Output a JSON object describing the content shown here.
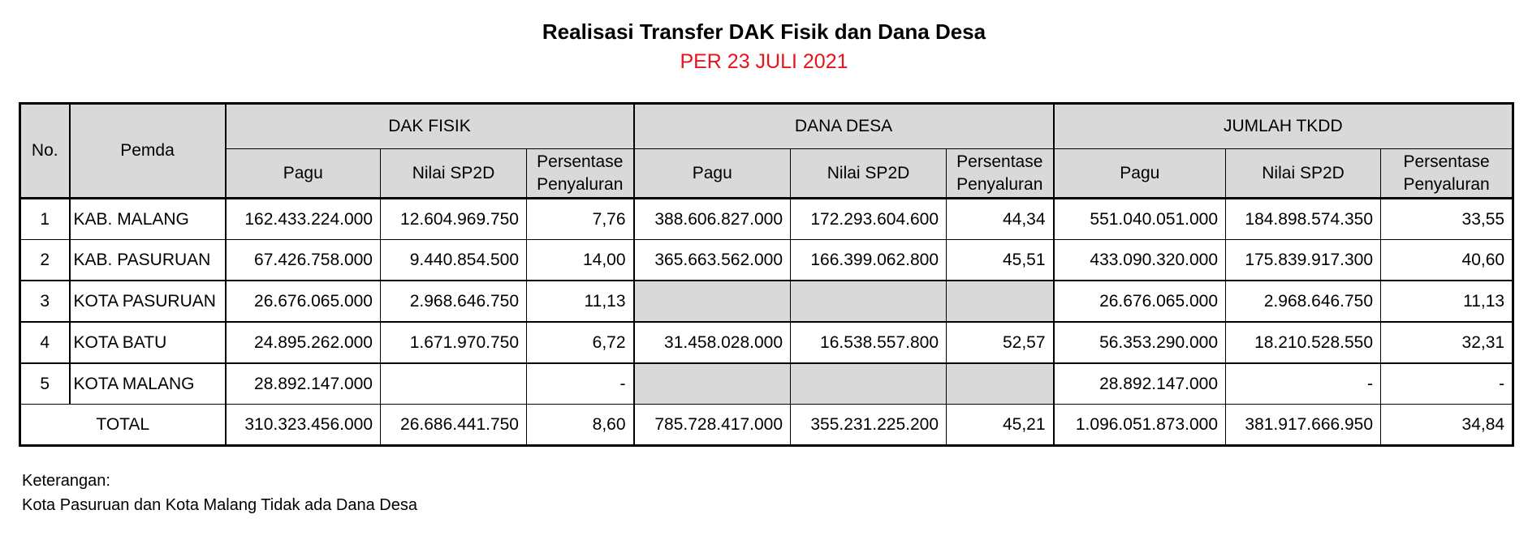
{
  "title": "Realisasi Transfer DAK Fisik dan Dana Desa",
  "subtitle": "PER 23 JULI 2021",
  "table": {
    "header": {
      "no": "No.",
      "pemda": "Pemda",
      "groups": [
        "DAK FISIK",
        "DANA DESA",
        "JUMLAH TKDD"
      ],
      "pagu": "Pagu",
      "nilai": "Nilai SP2D",
      "persen_line1": "Persentase",
      "persen_line2": "Penyaluran"
    },
    "rows": [
      {
        "no": "1",
        "pemda": "KAB. MALANG",
        "dak_pagu": "162.433.224.000",
        "dak_nilai": "12.604.969.750",
        "dak_persen": "7,76",
        "dd_pagu": "388.606.827.000",
        "dd_nilai": "172.293.604.600",
        "dd_persen": "44,34",
        "tkdd_pagu": "551.040.051.000",
        "tkdd_nilai": "184.898.574.350",
        "tkdd_persen": "33,55"
      },
      {
        "no": "2",
        "pemda": "KAB. PASURUAN",
        "dak_pagu": "67.426.758.000",
        "dak_nilai": "9.440.854.500",
        "dak_persen": "14,00",
        "dd_pagu": "365.663.562.000",
        "dd_nilai": "166.399.062.800",
        "dd_persen": "45,51",
        "tkdd_pagu": "433.090.320.000",
        "tkdd_nilai": "175.839.917.300",
        "tkdd_persen": "40,60"
      },
      {
        "no": "3",
        "pemda": "KOTA PASURUAN",
        "dak_pagu": "26.676.065.000",
        "dak_nilai": "2.968.646.750",
        "dak_persen": "11,13",
        "dd_pagu": "",
        "dd_nilai": "",
        "dd_persen": "",
        "tkdd_pagu": "26.676.065.000",
        "tkdd_nilai": "2.968.646.750",
        "tkdd_persen": "11,13"
      },
      {
        "no": "4",
        "pemda": "KOTA BATU",
        "dak_pagu": "24.895.262.000",
        "dak_nilai": "1.671.970.750",
        "dak_persen": "6,72",
        "dd_pagu": "31.458.028.000",
        "dd_nilai": "16.538.557.800",
        "dd_persen": "52,57",
        "tkdd_pagu": "56.353.290.000",
        "tkdd_nilai": "18.210.528.550",
        "tkdd_persen": "32,31"
      },
      {
        "no": "5",
        "pemda": "KOTA MALANG",
        "dak_pagu": "28.892.147.000",
        "dak_nilai": "",
        "dak_persen": "-",
        "dd_pagu": "",
        "dd_nilai": "",
        "dd_persen": "",
        "tkdd_pagu": "28.892.147.000",
        "tkdd_nilai": "-",
        "tkdd_persen": "-"
      }
    ],
    "total": {
      "label": "TOTAL",
      "dak_pagu": "310.323.456.000",
      "dak_nilai": "26.686.441.750",
      "dak_persen": "8,60",
      "dd_pagu": "785.728.417.000",
      "dd_nilai": "355.231.225.200",
      "dd_persen": "45,21",
      "tkdd_pagu": "1.096.051.873.000",
      "tkdd_nilai": "381.917.666.950",
      "tkdd_persen": "34,84"
    }
  },
  "notes": {
    "heading": "Keterangan:",
    "text": "Kota Pasuruan dan Kota Malang Tidak ada Dana Desa"
  }
}
